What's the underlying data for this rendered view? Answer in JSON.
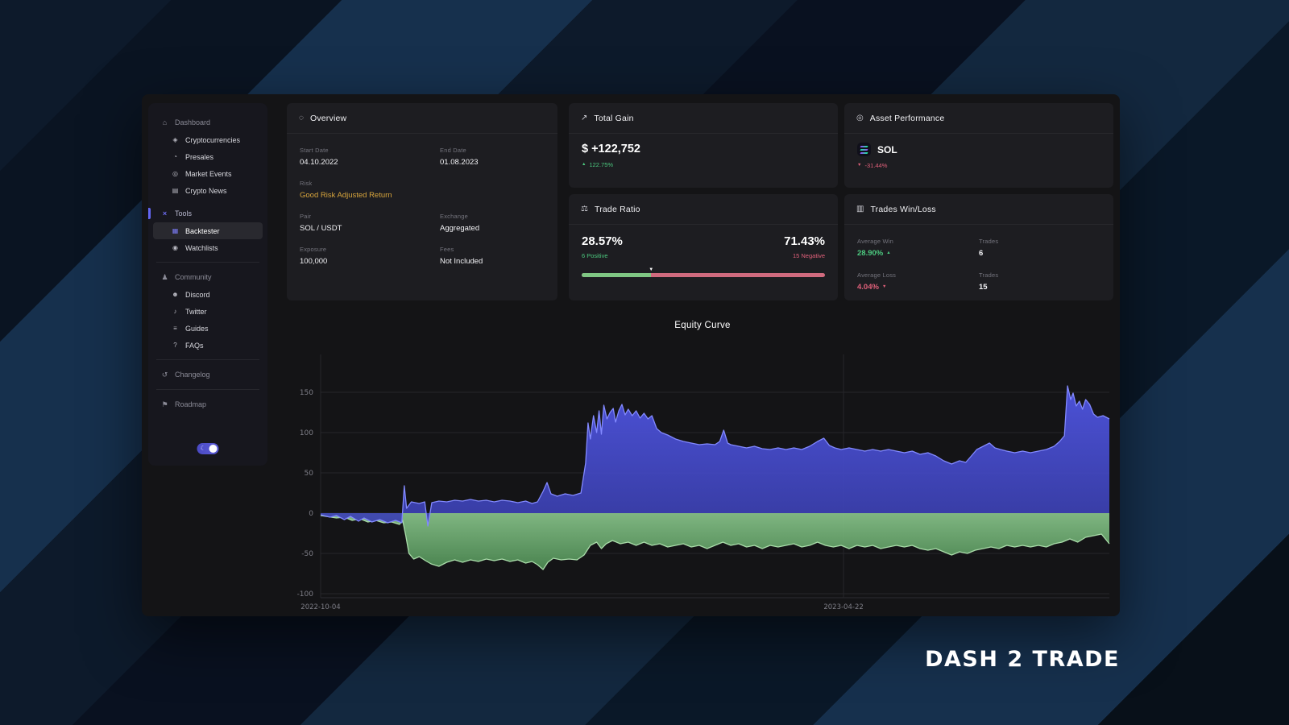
{
  "brand": {
    "logo": "DASH 2 TRADE"
  },
  "sidebar": {
    "sections": [
      {
        "label": "Dashboard",
        "glyph": "⌂",
        "items": [
          {
            "label": "Cryptocurrencies",
            "glyph": "◈"
          },
          {
            "label": "Presales",
            "glyph": "◔"
          },
          {
            "label": "Market Events",
            "glyph": "◎"
          },
          {
            "label": "Crypto News",
            "glyph": "▤"
          }
        ]
      },
      {
        "label": "Tools",
        "glyph": "×",
        "items": [
          {
            "label": "Backtester",
            "glyph": "▦"
          },
          {
            "label": "Watchlists",
            "glyph": "◉"
          }
        ]
      },
      {
        "label": "Community",
        "glyph": "♟",
        "items": [
          {
            "label": "Discord",
            "glyph": "☻"
          },
          {
            "label": "Twitter",
            "glyph": "♪"
          },
          {
            "label": "Guides",
            "glyph": "≡"
          },
          {
            "label": "FAQs",
            "glyph": "?"
          }
        ]
      },
      {
        "label": "Changelog",
        "glyph": "↺"
      },
      {
        "label": "Roadmap",
        "glyph": "⚑"
      }
    ],
    "toggle": {
      "moon_glyph": "☾"
    }
  },
  "overview": {
    "title": "Overview",
    "glyph": "◌",
    "start_date_label": "Start Date",
    "start_date": "04.10.2022",
    "end_date_label": "End Date",
    "end_date": "01.08.2023",
    "risk_label": "Risk",
    "risk": "Good Risk Adjusted Return",
    "pair_label": "Pair",
    "pair": "SOL / USDT",
    "exchange_label": "Exchange",
    "exchange": "Aggregated",
    "exposure_label": "Exposure",
    "exposure": "100,000",
    "fees_label": "Fees",
    "fees": "Not Included"
  },
  "total_gain": {
    "title": "Total Gain",
    "glyph": "↗",
    "value": "$ +122,752",
    "up_glyph": "▲",
    "change": "122.75%"
  },
  "asset_performance": {
    "title": "Asset Performance",
    "glyph": "◎",
    "asset": "SOL",
    "down_glyph": "▼",
    "change": "-31.44%"
  },
  "trade_ratio": {
    "title": "Trade Ratio",
    "glyph": "⚖",
    "positive_pct": "28.57%",
    "positive_label": "6 Positive",
    "negative_pct": "71.43%",
    "negative_label": "15 Negative",
    "positive_value": 28.57,
    "marker_glyph": "▼",
    "positive_color": "#7fc683",
    "negative_color": "#d06a7e"
  },
  "trades_win_loss": {
    "title": "Trades Win/Loss",
    "glyph": "▥",
    "avg_win_label": "Average Win",
    "avg_win": "28.90%",
    "up_glyph": "▲",
    "trades_label_win": "Trades",
    "trades_win": "6",
    "avg_loss_label": "Average Loss",
    "avg_loss": "4.04%",
    "down_glyph": "▼",
    "trades_label_loss": "Trades",
    "trades_loss": "15"
  },
  "chart_data": {
    "type": "area",
    "title": "Equity Curve",
    "y_ticks": [
      150,
      100,
      50,
      0,
      -50,
      -100
    ],
    "ylim": [
      -105,
      197
    ],
    "grid": true,
    "x_ticks": [
      {
        "label": "2022-10-04",
        "frac": 0
      },
      {
        "label": "2023-04-22",
        "frac": 0.663
      }
    ],
    "series": [
      {
        "name": "drawdown",
        "line_color": "#a9dca9",
        "fill_top": "#8bc88d",
        "fill_bottom": "#4f8f55",
        "fill_opacity": 0.9,
        "points": [
          [
            0,
            -3
          ],
          [
            0.02,
            -6
          ],
          [
            0.03,
            -5
          ],
          [
            0.04,
            -9
          ],
          [
            0.05,
            -7
          ],
          [
            0.06,
            -11
          ],
          [
            0.07,
            -9
          ],
          [
            0.08,
            -12
          ],
          [
            0.09,
            -11
          ],
          [
            0.1,
            -14
          ],
          [
            0.104,
            -9
          ],
          [
            0.108,
            -28
          ],
          [
            0.112,
            -50
          ],
          [
            0.118,
            -57
          ],
          [
            0.125,
            -54
          ],
          [
            0.133,
            -59
          ],
          [
            0.14,
            -63
          ],
          [
            0.15,
            -66
          ],
          [
            0.16,
            -61
          ],
          [
            0.17,
            -58
          ],
          [
            0.18,
            -61
          ],
          [
            0.19,
            -58
          ],
          [
            0.2,
            -60
          ],
          [
            0.21,
            -57
          ],
          [
            0.22,
            -59
          ],
          [
            0.23,
            -57
          ],
          [
            0.24,
            -60
          ],
          [
            0.25,
            -58
          ],
          [
            0.26,
            -62
          ],
          [
            0.268,
            -60
          ],
          [
            0.275,
            -64
          ],
          [
            0.282,
            -70
          ],
          [
            0.288,
            -61
          ],
          [
            0.295,
            -56
          ],
          [
            0.305,
            -58
          ],
          [
            0.315,
            -57
          ],
          [
            0.325,
            -58
          ],
          [
            0.334,
            -52
          ],
          [
            0.342,
            -40
          ],
          [
            0.35,
            -36
          ],
          [
            0.356,
            -44
          ],
          [
            0.362,
            -38
          ],
          [
            0.37,
            -34
          ],
          [
            0.38,
            -38
          ],
          [
            0.39,
            -36
          ],
          [
            0.4,
            -40
          ],
          [
            0.41,
            -36
          ],
          [
            0.42,
            -40
          ],
          [
            0.43,
            -38
          ],
          [
            0.44,
            -42
          ],
          [
            0.45,
            -40
          ],
          [
            0.46,
            -38
          ],
          [
            0.47,
            -42
          ],
          [
            0.48,
            -40
          ],
          [
            0.49,
            -44
          ],
          [
            0.5,
            -40
          ],
          [
            0.51,
            -36
          ],
          [
            0.52,
            -40
          ],
          [
            0.53,
            -38
          ],
          [
            0.54,
            -42
          ],
          [
            0.55,
            -40
          ],
          [
            0.56,
            -44
          ],
          [
            0.57,
            -40
          ],
          [
            0.58,
            -42
          ],
          [
            0.59,
            -40
          ],
          [
            0.6,
            -38
          ],
          [
            0.61,
            -42
          ],
          [
            0.62,
            -40
          ],
          [
            0.63,
            -36
          ],
          [
            0.64,
            -40
          ],
          [
            0.65,
            -42
          ],
          [
            0.66,
            -40
          ],
          [
            0.67,
            -44
          ],
          [
            0.68,
            -40
          ],
          [
            0.69,
            -42
          ],
          [
            0.7,
            -40
          ],
          [
            0.71,
            -44
          ],
          [
            0.72,
            -42
          ],
          [
            0.73,
            -40
          ],
          [
            0.74,
            -42
          ],
          [
            0.75,
            -40
          ],
          [
            0.76,
            -44
          ],
          [
            0.77,
            -46
          ],
          [
            0.78,
            -44
          ],
          [
            0.79,
            -48
          ],
          [
            0.8,
            -52
          ],
          [
            0.81,
            -48
          ],
          [
            0.82,
            -50
          ],
          [
            0.83,
            -46
          ],
          [
            0.84,
            -44
          ],
          [
            0.85,
            -42
          ],
          [
            0.86,
            -44
          ],
          [
            0.87,
            -40
          ],
          [
            0.88,
            -42
          ],
          [
            0.89,
            -40
          ],
          [
            0.9,
            -42
          ],
          [
            0.91,
            -40
          ],
          [
            0.92,
            -42
          ],
          [
            0.93,
            -38
          ],
          [
            0.94,
            -36
          ],
          [
            0.95,
            -32
          ],
          [
            0.96,
            -36
          ],
          [
            0.97,
            -30
          ],
          [
            0.98,
            -28
          ],
          [
            0.99,
            -26
          ],
          [
            1,
            -38
          ]
        ]
      },
      {
        "name": "equity",
        "line_color": "#8289ff",
        "fill_top": "#5157e8",
        "fill_bottom": "#3a3fae",
        "fill_opacity": 0.92,
        "points": [
          [
            0,
            -2
          ],
          [
            0.012,
            -5
          ],
          [
            0.02,
            -3
          ],
          [
            0.03,
            -8
          ],
          [
            0.038,
            -4
          ],
          [
            0.048,
            -10
          ],
          [
            0.055,
            -6
          ],
          [
            0.065,
            -11
          ],
          [
            0.075,
            -8
          ],
          [
            0.085,
            -12
          ],
          [
            0.095,
            -9
          ],
          [
            0.103,
            -12
          ],
          [
            0.106,
            34
          ],
          [
            0.109,
            6
          ],
          [
            0.115,
            14
          ],
          [
            0.125,
            12
          ],
          [
            0.132,
            14
          ],
          [
            0.136,
            -16
          ],
          [
            0.141,
            13
          ],
          [
            0.15,
            15
          ],
          [
            0.16,
            14
          ],
          [
            0.17,
            16
          ],
          [
            0.18,
            15
          ],
          [
            0.19,
            17
          ],
          [
            0.2,
            15
          ],
          [
            0.21,
            16
          ],
          [
            0.22,
            14
          ],
          [
            0.23,
            16
          ],
          [
            0.24,
            15
          ],
          [
            0.25,
            13
          ],
          [
            0.26,
            15
          ],
          [
            0.268,
            12
          ],
          [
            0.275,
            14
          ],
          [
            0.282,
            27
          ],
          [
            0.287,
            38
          ],
          [
            0.292,
            24
          ],
          [
            0.3,
            21
          ],
          [
            0.31,
            24
          ],
          [
            0.32,
            22
          ],
          [
            0.33,
            25
          ],
          [
            0.336,
            62
          ],
          [
            0.339,
            112
          ],
          [
            0.342,
            92
          ],
          [
            0.346,
            121
          ],
          [
            0.35,
            100
          ],
          [
            0.353,
            127
          ],
          [
            0.356,
            98
          ],
          [
            0.359,
            134
          ],
          [
            0.363,
            117
          ],
          [
            0.367,
            125
          ],
          [
            0.371,
            130
          ],
          [
            0.374,
            113
          ],
          [
            0.378,
            127
          ],
          [
            0.382,
            135
          ],
          [
            0.386,
            122
          ],
          [
            0.39,
            129
          ],
          [
            0.395,
            121
          ],
          [
            0.4,
            127
          ],
          [
            0.405,
            118
          ],
          [
            0.41,
            124
          ],
          [
            0.415,
            117
          ],
          [
            0.42,
            121
          ],
          [
            0.426,
            105
          ],
          [
            0.432,
            100
          ],
          [
            0.44,
            97
          ],
          [
            0.45,
            92
          ],
          [
            0.46,
            89
          ],
          [
            0.47,
            87
          ],
          [
            0.48,
            85
          ],
          [
            0.49,
            86
          ],
          [
            0.5,
            85
          ],
          [
            0.506,
            89
          ],
          [
            0.511,
            103
          ],
          [
            0.516,
            87
          ],
          [
            0.52,
            85
          ],
          [
            0.53,
            83
          ],
          [
            0.54,
            81
          ],
          [
            0.55,
            83
          ],
          [
            0.56,
            80
          ],
          [
            0.57,
            79
          ],
          [
            0.58,
            81
          ],
          [
            0.59,
            79
          ],
          [
            0.6,
            81
          ],
          [
            0.61,
            79
          ],
          [
            0.62,
            83
          ],
          [
            0.63,
            89
          ],
          [
            0.638,
            93
          ],
          [
            0.645,
            84
          ],
          [
            0.652,
            81
          ],
          [
            0.66,
            79
          ],
          [
            0.67,
            81
          ],
          [
            0.68,
            79
          ],
          [
            0.69,
            77
          ],
          [
            0.7,
            79
          ],
          [
            0.71,
            77
          ],
          [
            0.72,
            79
          ],
          [
            0.73,
            77
          ],
          [
            0.74,
            75
          ],
          [
            0.75,
            77
          ],
          [
            0.76,
            73
          ],
          [
            0.77,
            75
          ],
          [
            0.78,
            71
          ],
          [
            0.79,
            65
          ],
          [
            0.8,
            61
          ],
          [
            0.81,
            65
          ],
          [
            0.818,
            63
          ],
          [
            0.825,
            71
          ],
          [
            0.832,
            79
          ],
          [
            0.84,
            83
          ],
          [
            0.848,
            87
          ],
          [
            0.855,
            81
          ],
          [
            0.862,
            79
          ],
          [
            0.87,
            77
          ],
          [
            0.88,
            75
          ],
          [
            0.89,
            77
          ],
          [
            0.9,
            75
          ],
          [
            0.91,
            77
          ],
          [
            0.92,
            79
          ],
          [
            0.93,
            83
          ],
          [
            0.937,
            89
          ],
          [
            0.943,
            96
          ],
          [
            0.947,
            158
          ],
          [
            0.951,
            141
          ],
          [
            0.954,
            149
          ],
          [
            0.958,
            133
          ],
          [
            0.962,
            139
          ],
          [
            0.966,
            129
          ],
          [
            0.97,
            141
          ],
          [
            0.975,
            135
          ],
          [
            0.98,
            123
          ],
          [
            0.985,
            119
          ],
          [
            0.992,
            121
          ],
          [
            1,
            117
          ]
        ]
      }
    ]
  }
}
